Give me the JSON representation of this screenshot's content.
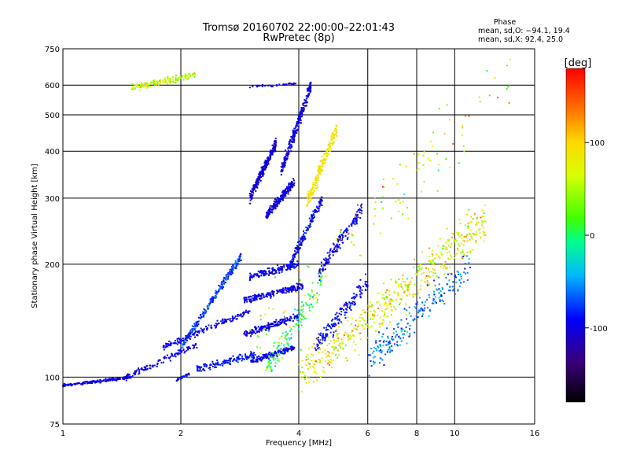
{
  "chart_data": {
    "type": "scatter",
    "title": "Tromsø 20160702 22:00:00–22:01:43",
    "subtitle": "RwPretec (8p)",
    "xlabel": "Frequency [MHz]",
    "ylabel": "Stationary phase Virtual Height [km]",
    "x_scale": "log",
    "y_scale": "log",
    "xlim": [
      1,
      16
    ],
    "ylim": [
      75,
      750
    ],
    "x_ticks": [
      1,
      2,
      4,
      6,
      8,
      10,
      16
    ],
    "x_tick_labels": [
      "1",
      "2",
      "4",
      "6",
      "8",
      "10",
      "16"
    ],
    "y_ticks": [
      75,
      100,
      200,
      300,
      400,
      500,
      600,
      750
    ],
    "y_tick_labels": [
      "75",
      "100",
      "200",
      "300",
      "400",
      "500",
      "600",
      "750"
    ],
    "grid": true,
    "phase_box": {
      "title": "Phase",
      "line_o": "mean, sd,O: −94.1, 19.4",
      "line_x": "mean, sd,X:  92.4, 25.0"
    },
    "colorbar": {
      "label": "[deg]",
      "range": [
        -180,
        180
      ],
      "ticks": [
        100,
        0,
        -100
      ],
      "tick_labels": [
        "100",
        "0",
        "-100"
      ]
    },
    "traces": [
      {
        "f_start": 1.0,
        "f_end": 1.5,
        "h_start": 95,
        "h_end": 100,
        "n": 180,
        "phase": -100,
        "hjit": 0.012,
        "pjit": 15
      },
      {
        "f_start": 1.45,
        "f_end": 2.2,
        "h_start": 100,
        "h_end": 122,
        "n": 120,
        "phase": -95,
        "hjit": 0.03,
        "pjit": 20
      },
      {
        "f_start": 1.95,
        "f_end": 2.1,
        "h_start": 98,
        "h_end": 102,
        "n": 40,
        "phase": -90,
        "hjit": 0.01,
        "pjit": 20
      },
      {
        "f_start": 2.0,
        "f_end": 2.85,
        "h_start": 120,
        "h_end": 210,
        "n": 260,
        "phase": -75,
        "hjit": 0.035,
        "pjit": 30
      },
      {
        "f_start": 1.8,
        "f_end": 3.0,
        "h_start": 120,
        "h_end": 150,
        "n": 160,
        "phase": -95,
        "hjit": 0.03,
        "pjit": 20
      },
      {
        "f_start": 2.2,
        "f_end": 3.1,
        "h_start": 105,
        "h_end": 115,
        "n": 140,
        "phase": -85,
        "hjit": 0.03,
        "pjit": 25
      },
      {
        "f_start": 3.0,
        "f_end": 3.9,
        "h_start": 110,
        "h_end": 120,
        "n": 160,
        "phase": -95,
        "hjit": 0.025,
        "pjit": 20
      },
      {
        "f_start": 2.9,
        "f_end": 4.0,
        "h_start": 130,
        "h_end": 145,
        "n": 180,
        "phase": -98,
        "hjit": 0.03,
        "pjit": 18
      },
      {
        "f_start": 2.9,
        "f_end": 4.1,
        "h_start": 160,
        "h_end": 175,
        "n": 200,
        "phase": -100,
        "hjit": 0.03,
        "pjit": 18
      },
      {
        "f_start": 3.0,
        "f_end": 4.0,
        "h_start": 185,
        "h_end": 200,
        "n": 150,
        "phase": -95,
        "hjit": 0.03,
        "pjit": 20
      },
      {
        "f_start": 3.0,
        "f_end": 3.5,
        "h_start": 300,
        "h_end": 420,
        "n": 260,
        "phase": -105,
        "hjit": 0.05,
        "pjit": 15
      },
      {
        "f_start": 3.3,
        "f_end": 3.9,
        "h_start": 270,
        "h_end": 330,
        "n": 200,
        "phase": -100,
        "hjit": 0.04,
        "pjit": 15
      },
      {
        "f_start": 3.6,
        "f_end": 4.3,
        "h_start": 350,
        "h_end": 600,
        "n": 260,
        "phase": -100,
        "hjit": 0.06,
        "pjit": 15
      },
      {
        "f_start": 3.8,
        "f_end": 4.6,
        "h_start": 200,
        "h_end": 300,
        "n": 160,
        "phase": -90,
        "hjit": 0.05,
        "pjit": 25
      },
      {
        "f_start": 4.2,
        "f_end": 5.0,
        "h_start": 290,
        "h_end": 460,
        "n": 200,
        "phase": 90,
        "hjit": 0.07,
        "pjit": 25
      },
      {
        "f_start": 4.5,
        "f_end": 5.8,
        "h_start": 190,
        "h_end": 280,
        "n": 160,
        "phase": -95,
        "hjit": 0.06,
        "pjit": 20
      },
      {
        "f_start": 4.4,
        "f_end": 6.0,
        "h_start": 120,
        "h_end": 180,
        "n": 160,
        "phase": -90,
        "hjit": 0.08,
        "pjit": 25
      },
      {
        "f_start": 1.5,
        "f_end": 2.2,
        "h_start": 590,
        "h_end": 640,
        "n": 140,
        "phase": 60,
        "hjit": 0.03,
        "pjit": 80
      },
      {
        "f_start": 3.0,
        "f_end": 4.0,
        "h_start": 595,
        "h_end": 605,
        "n": 40,
        "phase": -100,
        "hjit": 0.01,
        "pjit": 15
      },
      {
        "f_start": 4.0,
        "f_end": 12.0,
        "h_start": 100,
        "h_end": 260,
        "n": 520,
        "phase": 80,
        "hjit": 0.18,
        "pjit": 90
      },
      {
        "f_start": 6.0,
        "f_end": 11.0,
        "h_start": 110,
        "h_end": 200,
        "n": 220,
        "phase": -60,
        "hjit": 0.15,
        "pjit": 60
      },
      {
        "f_start": 3.3,
        "f_end": 4.6,
        "h_start": 105,
        "h_end": 180,
        "n": 140,
        "phase": 10,
        "hjit": 0.12,
        "pjit": 80
      },
      {
        "f_start": 3.0,
        "f_end": 14.0,
        "h_start": 120,
        "h_end": 650,
        "n": 120,
        "phase": 60,
        "hjit": 0.35,
        "pjit": 110
      }
    ]
  }
}
